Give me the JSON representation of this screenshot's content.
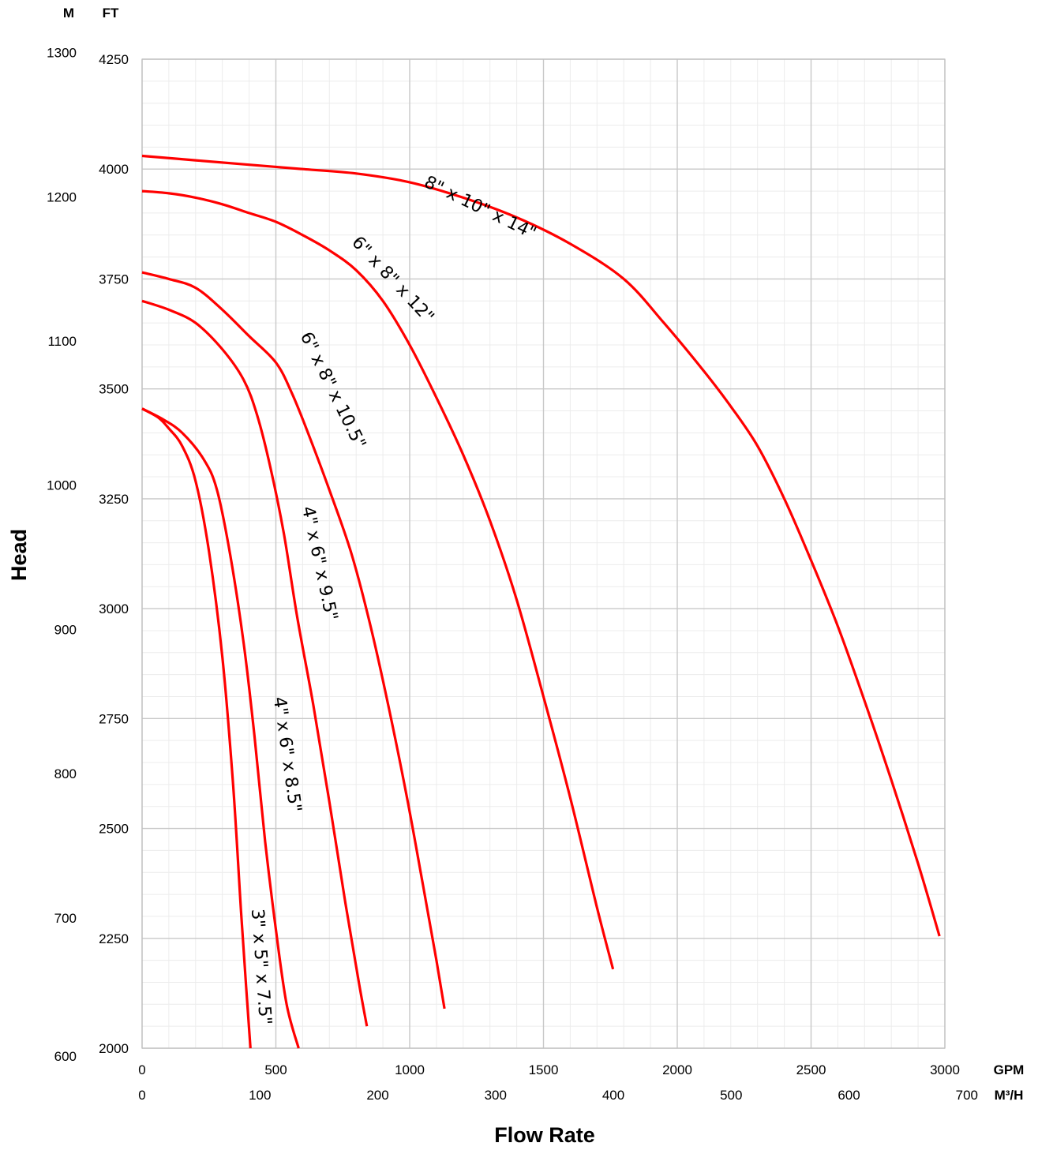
{
  "chart_data": {
    "type": "line",
    "xlabel": "Flow Rate",
    "ylabel": "Head",
    "x_unit_primary": "GPM",
    "x_unit_secondary": "M³/H",
    "y_unit_primary": "FT",
    "y_unit_secondary": "M",
    "xlim": [
      0,
      3000
    ],
    "ylim": [
      2000,
      4250
    ],
    "x_ticks": [
      0,
      500,
      1000,
      1500,
      2000,
      2500,
      3000
    ],
    "y_ticks": [
      2000,
      2250,
      2500,
      2750,
      3000,
      3250,
      3500,
      3750,
      4000,
      4250
    ],
    "x2_ticks": [
      0,
      100,
      200,
      300,
      400,
      500,
      600,
      700
    ],
    "y2_ticks": [
      600,
      700,
      800,
      900,
      1000,
      1100,
      1200,
      1300
    ],
    "grid": true,
    "line_color": "#ff0000",
    "series": [
      {
        "name": "3\" x 5\" x 7.5\"",
        "points": [
          [
            0,
            3455
          ],
          [
            60,
            3435
          ],
          [
            100,
            3410
          ],
          [
            150,
            3370
          ],
          [
            200,
            3290
          ],
          [
            250,
            3130
          ],
          [
            300,
            2890
          ],
          [
            340,
            2600
          ],
          [
            370,
            2310
          ],
          [
            390,
            2130
          ],
          [
            405,
            2000
          ]
        ]
      },
      {
        "name": "4\" x 6\" x 8.5\"",
        "points": [
          [
            0,
            3455
          ],
          [
            80,
            3430
          ],
          [
            150,
            3400
          ],
          [
            230,
            3340
          ],
          [
            280,
            3270
          ],
          [
            330,
            3120
          ],
          [
            380,
            2920
          ],
          [
            420,
            2710
          ],
          [
            460,
            2470
          ],
          [
            500,
            2270
          ],
          [
            540,
            2100
          ],
          [
            585,
            2000
          ]
        ]
      },
      {
        "name": "4\" x 6\" x 9.5\"",
        "points": [
          [
            0,
            3700
          ],
          [
            100,
            3680
          ],
          [
            200,
            3650
          ],
          [
            300,
            3590
          ],
          [
            380,
            3520
          ],
          [
            430,
            3440
          ],
          [
            480,
            3320
          ],
          [
            530,
            3170
          ],
          [
            580,
            2980
          ],
          [
            640,
            2780
          ],
          [
            700,
            2560
          ],
          [
            760,
            2330
          ],
          [
            810,
            2150
          ],
          [
            840,
            2050
          ]
        ]
      },
      {
        "name": "6\" x 8\" x 10.5\"",
        "points": [
          [
            0,
            3765
          ],
          [
            100,
            3750
          ],
          [
            200,
            3730
          ],
          [
            300,
            3680
          ],
          [
            400,
            3620
          ],
          [
            500,
            3560
          ],
          [
            560,
            3490
          ],
          [
            620,
            3400
          ],
          [
            700,
            3270
          ],
          [
            780,
            3130
          ],
          [
            850,
            2970
          ],
          [
            920,
            2780
          ],
          [
            990,
            2570
          ],
          [
            1050,
            2370
          ],
          [
            1100,
            2200
          ],
          [
            1130,
            2090
          ]
        ]
      },
      {
        "name": "6\" x 8\" x 12\"",
        "points": [
          [
            0,
            3950
          ],
          [
            100,
            3945
          ],
          [
            200,
            3935
          ],
          [
            300,
            3920
          ],
          [
            400,
            3900
          ],
          [
            500,
            3880
          ],
          [
            600,
            3850
          ],
          [
            700,
            3815
          ],
          [
            800,
            3770
          ],
          [
            900,
            3700
          ],
          [
            1000,
            3600
          ],
          [
            1100,
            3480
          ],
          [
            1200,
            3350
          ],
          [
            1300,
            3200
          ],
          [
            1400,
            3020
          ],
          [
            1500,
            2800
          ],
          [
            1600,
            2570
          ],
          [
            1700,
            2320
          ],
          [
            1760,
            2180
          ]
        ]
      },
      {
        "name": "8\" x 10\" x 14\"",
        "points": [
          [
            0,
            4030
          ],
          [
            200,
            4020
          ],
          [
            400,
            4010
          ],
          [
            600,
            4000
          ],
          [
            800,
            3990
          ],
          [
            1000,
            3970
          ],
          [
            1200,
            3935
          ],
          [
            1400,
            3890
          ],
          [
            1600,
            3830
          ],
          [
            1800,
            3750
          ],
          [
            1950,
            3650
          ],
          [
            2100,
            3540
          ],
          [
            2200,
            3460
          ],
          [
            2300,
            3370
          ],
          [
            2400,
            3250
          ],
          [
            2500,
            3110
          ],
          [
            2600,
            2960
          ],
          [
            2700,
            2790
          ],
          [
            2800,
            2610
          ],
          [
            2900,
            2420
          ],
          [
            2980,
            2255
          ]
        ]
      }
    ]
  }
}
